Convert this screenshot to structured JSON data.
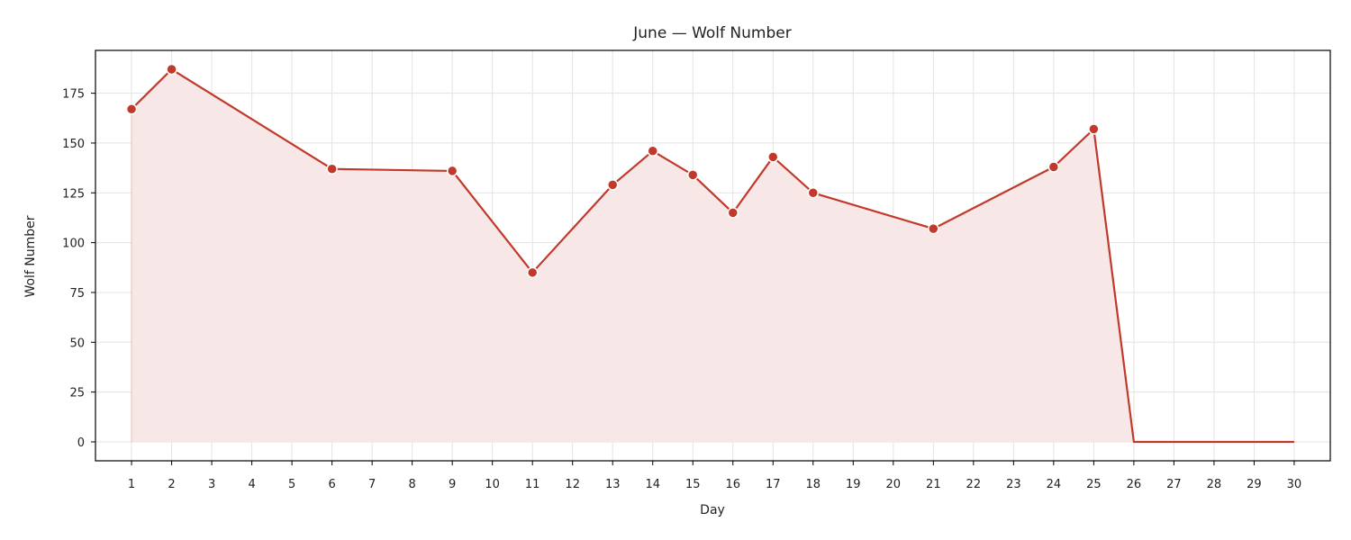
{
  "chart_data": {
    "type": "area",
    "title": "June — Wolf Number",
    "xlabel": "Day",
    "ylabel": "Wolf Number",
    "xlim": [
      0.1,
      30.9
    ],
    "ylim": [
      -9.5,
      196.5
    ],
    "x_ticks": [
      1,
      2,
      3,
      4,
      5,
      6,
      7,
      8,
      9,
      10,
      11,
      12,
      13,
      14,
      15,
      16,
      17,
      18,
      19,
      20,
      21,
      22,
      23,
      24,
      25,
      26,
      27,
      28,
      29,
      30
    ],
    "y_ticks": [
      0,
      25,
      50,
      75,
      100,
      125,
      150,
      175
    ],
    "grid": true,
    "legend": "none",
    "series": [
      {
        "points": [
          {
            "x": 1,
            "y": 167,
            "marker": true
          },
          {
            "x": 2,
            "y": 187,
            "marker": true
          },
          {
            "x": 6,
            "y": 137,
            "marker": true
          },
          {
            "x": 9,
            "y": 136,
            "marker": true
          },
          {
            "x": 11,
            "y": 85,
            "marker": true
          },
          {
            "x": 13,
            "y": 129,
            "marker": true
          },
          {
            "x": 14,
            "y": 146,
            "marker": true
          },
          {
            "x": 15,
            "y": 134,
            "marker": true
          },
          {
            "x": 16,
            "y": 115,
            "marker": true
          },
          {
            "x": 17,
            "y": 143,
            "marker": true
          },
          {
            "x": 18,
            "y": 125,
            "marker": true
          },
          {
            "x": 21,
            "y": 107,
            "marker": true
          },
          {
            "x": 24,
            "y": 138,
            "marker": true
          },
          {
            "x": 25,
            "y": 157,
            "marker": true
          },
          {
            "x": 26,
            "y": 0,
            "marker": false
          },
          {
            "x": 27,
            "y": 0,
            "marker": false
          },
          {
            "x": 28,
            "y": 0,
            "marker": false
          },
          {
            "x": 29,
            "y": 0,
            "marker": false
          },
          {
            "x": 30,
            "y": 0,
            "marker": false
          }
        ]
      }
    ],
    "colors": {
      "line": "#c0392b",
      "fill": "#f7e8e7",
      "grid": "#e3e3e3"
    }
  }
}
